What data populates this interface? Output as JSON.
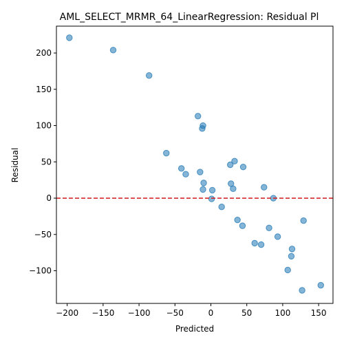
{
  "chart_data": {
    "type": "scatter",
    "title": "AML_SELECT_MRMR_64_LinearRegression: Residual Pl",
    "xlabel": "Predicted",
    "ylabel": "Residual",
    "xlim": [
      -215,
      170
    ],
    "ylim": [
      -145,
      237
    ],
    "xticks": [
      -200,
      -150,
      -100,
      -50,
      0,
      50,
      100,
      150
    ],
    "yticks": [
      -100,
      -50,
      0,
      50,
      100,
      150,
      200
    ],
    "xtick_labels": [
      "−200",
      "−150",
      "−100",
      "−50",
      "0",
      "50",
      "100",
      "150"
    ],
    "ytick_labels": [
      "−100",
      "−50",
      "0",
      "50",
      "100",
      "150",
      "200"
    ],
    "reference_line": {
      "y": 0,
      "color": "#d62728",
      "style": "dashed"
    },
    "marker_color": "#1f77b4",
    "grid": false,
    "points": [
      {
        "x": -197,
        "y": 221
      },
      {
        "x": -136,
        "y": 204
      },
      {
        "x": -86,
        "y": 169
      },
      {
        "x": -18,
        "y": 113
      },
      {
        "x": -11,
        "y": 100
      },
      {
        "x": -12,
        "y": 96
      },
      {
        "x": -62,
        "y": 62
      },
      {
        "x": 33,
        "y": 51
      },
      {
        "x": 45,
        "y": 43
      },
      {
        "x": 27,
        "y": 46
      },
      {
        "x": -41,
        "y": 41
      },
      {
        "x": -15,
        "y": 36
      },
      {
        "x": -35,
        "y": 33
      },
      {
        "x": -10,
        "y": 21
      },
      {
        "x": 28,
        "y": 20
      },
      {
        "x": 74,
        "y": 15
      },
      {
        "x": 31,
        "y": 13
      },
      {
        "x": -11,
        "y": 12
      },
      {
        "x": 2,
        "y": 11
      },
      {
        "x": 87,
        "y": 0
      },
      {
        "x": 1,
        "y": -1
      },
      {
        "x": 15,
        "y": -12
      },
      {
        "x": 37,
        "y": -30
      },
      {
        "x": 129,
        "y": -31
      },
      {
        "x": 44,
        "y": -38
      },
      {
        "x": 81,
        "y": -41
      },
      {
        "x": 93,
        "y": -53
      },
      {
        "x": 61,
        "y": -62
      },
      {
        "x": 70,
        "y": -64
      },
      {
        "x": 113,
        "y": -70
      },
      {
        "x": 112,
        "y": -80
      },
      {
        "x": 107,
        "y": -99
      },
      {
        "x": 153,
        "y": -120
      },
      {
        "x": 127,
        "y": -127
      }
    ]
  }
}
